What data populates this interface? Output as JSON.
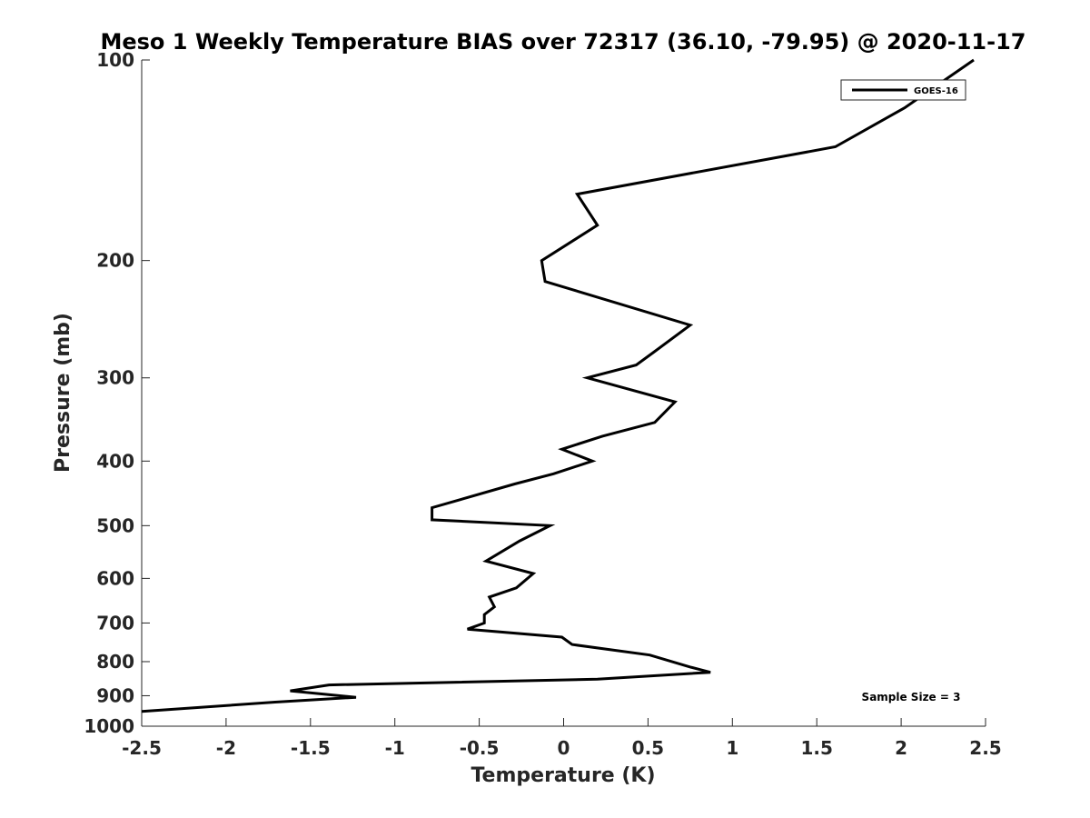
{
  "chart_data": {
    "type": "line",
    "title": "Meso 1 Weekly Temperature BIAS over 72317 (36.10, -79.95) @ 2020-11-17",
    "xlabel": "Temperature (K)",
    "ylabel": "Pressure (mb)",
    "xlim": [
      -2.5,
      2.5
    ],
    "ylim": [
      100,
      1000
    ],
    "y_scale": "log",
    "y_reversed": true,
    "x_ticks": [
      "-2.5",
      "-2",
      "-1.5",
      "-1",
      "-0.5",
      "0",
      "0.5",
      "1",
      "1.5",
      "2",
      "2.5"
    ],
    "y_ticks": [
      "100",
      "200",
      "300",
      "400",
      "500",
      "600",
      "700",
      "800",
      "900",
      "1000"
    ],
    "grid": false,
    "legend_position": "top-right",
    "annotation": "Sample Size = 3",
    "series": [
      {
        "name": "GOES-16",
        "color": "#000000",
        "x": [
          2.43,
          2.02,
          1.61,
          0.08,
          0.2,
          -0.13,
          -0.11,
          0.75,
          0.53,
          0.43,
          0.14,
          0.66,
          0.54,
          0.23,
          -0.01,
          0.17,
          -0.06,
          -0.29,
          -0.78,
          -0.78,
          -0.08,
          -0.26,
          -0.46,
          -0.18,
          -0.28,
          -0.44,
          -0.41,
          -0.47,
          -0.47,
          -0.57,
          -0.01,
          0.05,
          0.51,
          0.75,
          0.87,
          0.2,
          -1.39,
          -1.62,
          -1.23,
          -1.71,
          -2.5
        ],
        "y": [
          100,
          118,
          135,
          159,
          177,
          200,
          215,
          250,
          275,
          287,
          300,
          326,
          350,
          367,
          384,
          400,
          418,
          433,
          470,
          490,
          500,
          527,
          565,
          590,
          620,
          640,
          662,
          680,
          700,
          715,
          735,
          754,
          782,
          815,
          830,
          850,
          867,
          885,
          905,
          920,
          950
        ]
      }
    ]
  }
}
